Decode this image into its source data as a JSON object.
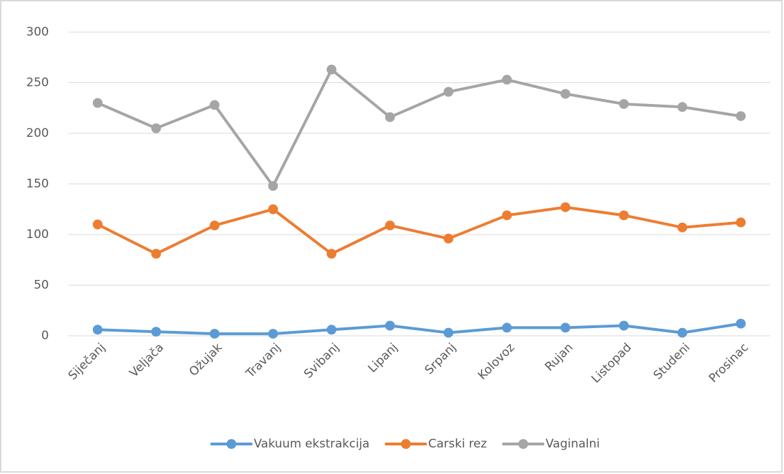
{
  "chart_data": {
    "type": "line",
    "categories": [
      "Siječanj",
      "Veljača",
      "Ožujak",
      "Travanj",
      "Svibanj",
      "Lipanj",
      "Srpanj",
      "Kolovoz",
      "Rujan",
      "Listopad",
      "Studeni",
      "Prosinac"
    ],
    "series": [
      {
        "name": "Vakuum ekstrakcija",
        "color": "#5b9bd5",
        "values": [
          6,
          4,
          2,
          2,
          6,
          10,
          3,
          8,
          8,
          10,
          3,
          12
        ]
      },
      {
        "name": "Carski rez",
        "color": "#ed7d31",
        "values": [
          110,
          81,
          109,
          125,
          81,
          109,
          96,
          119,
          127,
          119,
          107,
          112
        ]
      },
      {
        "name": "Vaginalni",
        "color": "#a5a5a5",
        "values": [
          230,
          205,
          228,
          148,
          263,
          216,
          241,
          253,
          239,
          229,
          226,
          217
        ]
      }
    ],
    "ylim": [
      0,
      300
    ],
    "yticks": [
      0,
      50,
      100,
      150,
      200,
      250,
      300
    ],
    "grid": true,
    "legend": "bottom"
  }
}
